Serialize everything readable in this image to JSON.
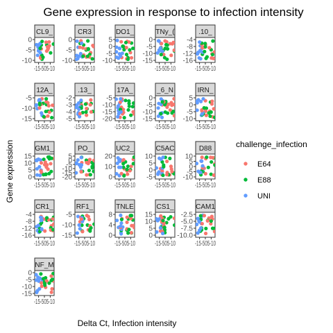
{
  "chart_data": {
    "type": "scatter",
    "title": "Gene expression in response to infection intensity",
    "xlabel": "Delta Ct, Infection intensity",
    "ylabel": "Gene expression",
    "x_tick_label": "-15-505-10",
    "legend": {
      "title": "challenge_infection",
      "placement": "right",
      "entries": [
        {
          "name": "E64",
          "color": "#F8766D"
        },
        {
          "name": "E88",
          "color": "#00BA38"
        },
        {
          "name": "UNI",
          "color": "#619CFF"
        }
      ]
    },
    "grid": false,
    "panels": [
      {
        "label": "CL9_",
        "yticks": [
          "0",
          "-5",
          "-10"
        ],
        "ylim": [
          -12,
          3
        ]
      },
      {
        "label": "CR3",
        "yticks": [
          "0",
          "-5",
          "-10"
        ],
        "ylim": [
          -12,
          3
        ]
      },
      {
        "label": "DO1_",
        "yticks": [
          "5",
          "0",
          "-5",
          "-10"
        ],
        "ylim": [
          -12,
          7
        ]
      },
      {
        "label": "TNy_(",
        "yticks": [
          "0",
          "-5",
          "-10",
          "-15"
        ],
        "ylim": [
          -16,
          3
        ]
      },
      {
        "label": ".10_",
        "yticks": [
          "-4",
          "-8",
          "-12",
          "-16"
        ],
        "ylim": [
          -17,
          -2
        ]
      },
      {
        "label": "12A_",
        "yticks": [
          "-5",
          "-10",
          "-15"
        ],
        "ylim": [
          -16,
          -2
        ]
      },
      {
        "label": ".13_",
        "yticks": [
          "-2",
          "-3",
          "-4",
          "-5"
        ],
        "ylim": [
          -5.5,
          -1.5
        ]
      },
      {
        "label": "17A_",
        "yticks": [
          "-5",
          "-10",
          "-15",
          "-20"
        ],
        "ylim": [
          -21,
          -3
        ]
      },
      {
        "label": "_6_N",
        "yticks": [
          "0",
          "-5",
          "-10",
          "-15"
        ],
        "ylim": [
          -16,
          3
        ]
      },
      {
        "label": "IRN_",
        "yticks": [
          "5",
          "0",
          "-5",
          "-10"
        ],
        "ylim": [
          -12,
          7
        ]
      },
      {
        "label": "GM1_",
        "yticks": [
          "15",
          "10",
          "5",
          "0"
        ],
        "ylim": [
          -2,
          18
        ]
      },
      {
        "label": "PO_",
        "yticks": [
          "5",
          "0",
          "-5",
          "-10",
          "-15",
          "-20"
        ],
        "ylim": [
          -21,
          7
        ]
      },
      {
        "label": "UC2_",
        "yticks": [
          "20",
          "10",
          "0"
        ],
        "ylim": [
          -4,
          24
        ]
      },
      {
        "label": "C5AC",
        "yticks": [
          "10",
          "5",
          "0",
          "-5"
        ],
        "ylim": [
          -7,
          13
        ]
      },
      {
        "label": "D88",
        "yticks": [
          "10",
          "5",
          "0",
          "-5",
          "-10"
        ],
        "ylim": [
          -12,
          12
        ]
      },
      {
        "label": "CR1_",
        "yticks": [
          "-4",
          "-8",
          "-12",
          "-16"
        ],
        "ylim": [
          -17,
          -2
        ]
      },
      {
        "label": "RF1_",
        "yticks": [
          "-5",
          "-10",
          "-15"
        ],
        "ylim": [
          -17,
          -2
        ]
      },
      {
        "label": "TNLE",
        "yticks": [
          "8",
          "4",
          "0"
        ],
        "ylim": [
          -2,
          10
        ]
      },
      {
        "label": "CS1_",
        "yticks": [
          "15",
          "10",
          "5",
          "0"
        ],
        "ylim": [
          -2,
          18
        ]
      },
      {
        "label": "CAM1",
        "yticks": [
          "-2.5",
          "-5.0",
          "-7.5",
          "-10.0"
        ],
        "ylim": [
          -11,
          -1
        ]
      },
      {
        "label": "NF_M",
        "yticks": [
          "0",
          "-5",
          "-10",
          "-15"
        ],
        "ylim": [
          -16,
          3
        ]
      }
    ]
  }
}
